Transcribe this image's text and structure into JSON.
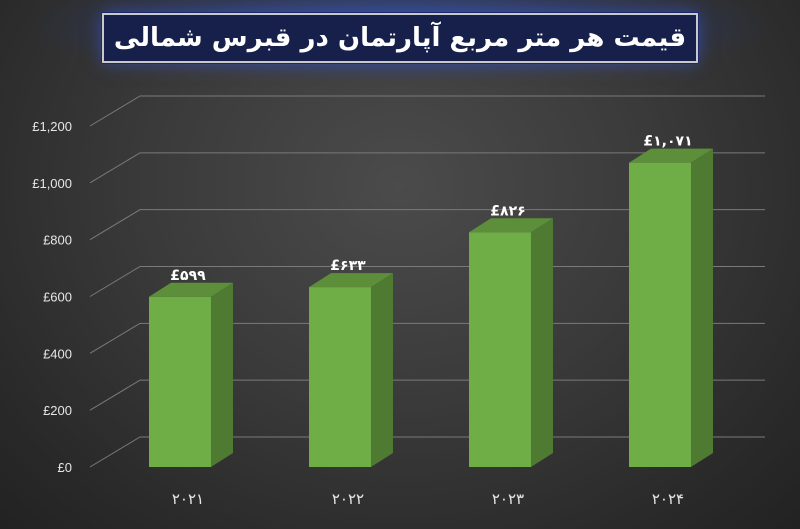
{
  "title": "قیمت هر متر مربع آپارتمان  در قبرس شمالی",
  "chart_data": {
    "type": "bar",
    "categories": [
      "۲۰۲۱",
      "۲۰۲۲",
      "۲۰۲۳",
      "۲۰۲۴"
    ],
    "values": [
      599,
      633,
      826,
      1071
    ],
    "data_labels": [
      "£۵۹۹",
      "£۶۳۳",
      "£۸۲۶",
      "£۱,۰۷۱"
    ],
    "yticks": [
      0,
      200,
      400,
      600,
      800,
      1000,
      1200
    ],
    "ytick_labels": [
      "£0",
      "£200",
      "£400",
      "£600",
      "£800",
      "£1,000",
      "£1,200"
    ],
    "ylim": [
      0,
      1200
    ],
    "grid": true,
    "bar_color": "#6fad47",
    "bar_side_color": "#4e7a32",
    "bar_top_color": "#5d8f3b"
  }
}
